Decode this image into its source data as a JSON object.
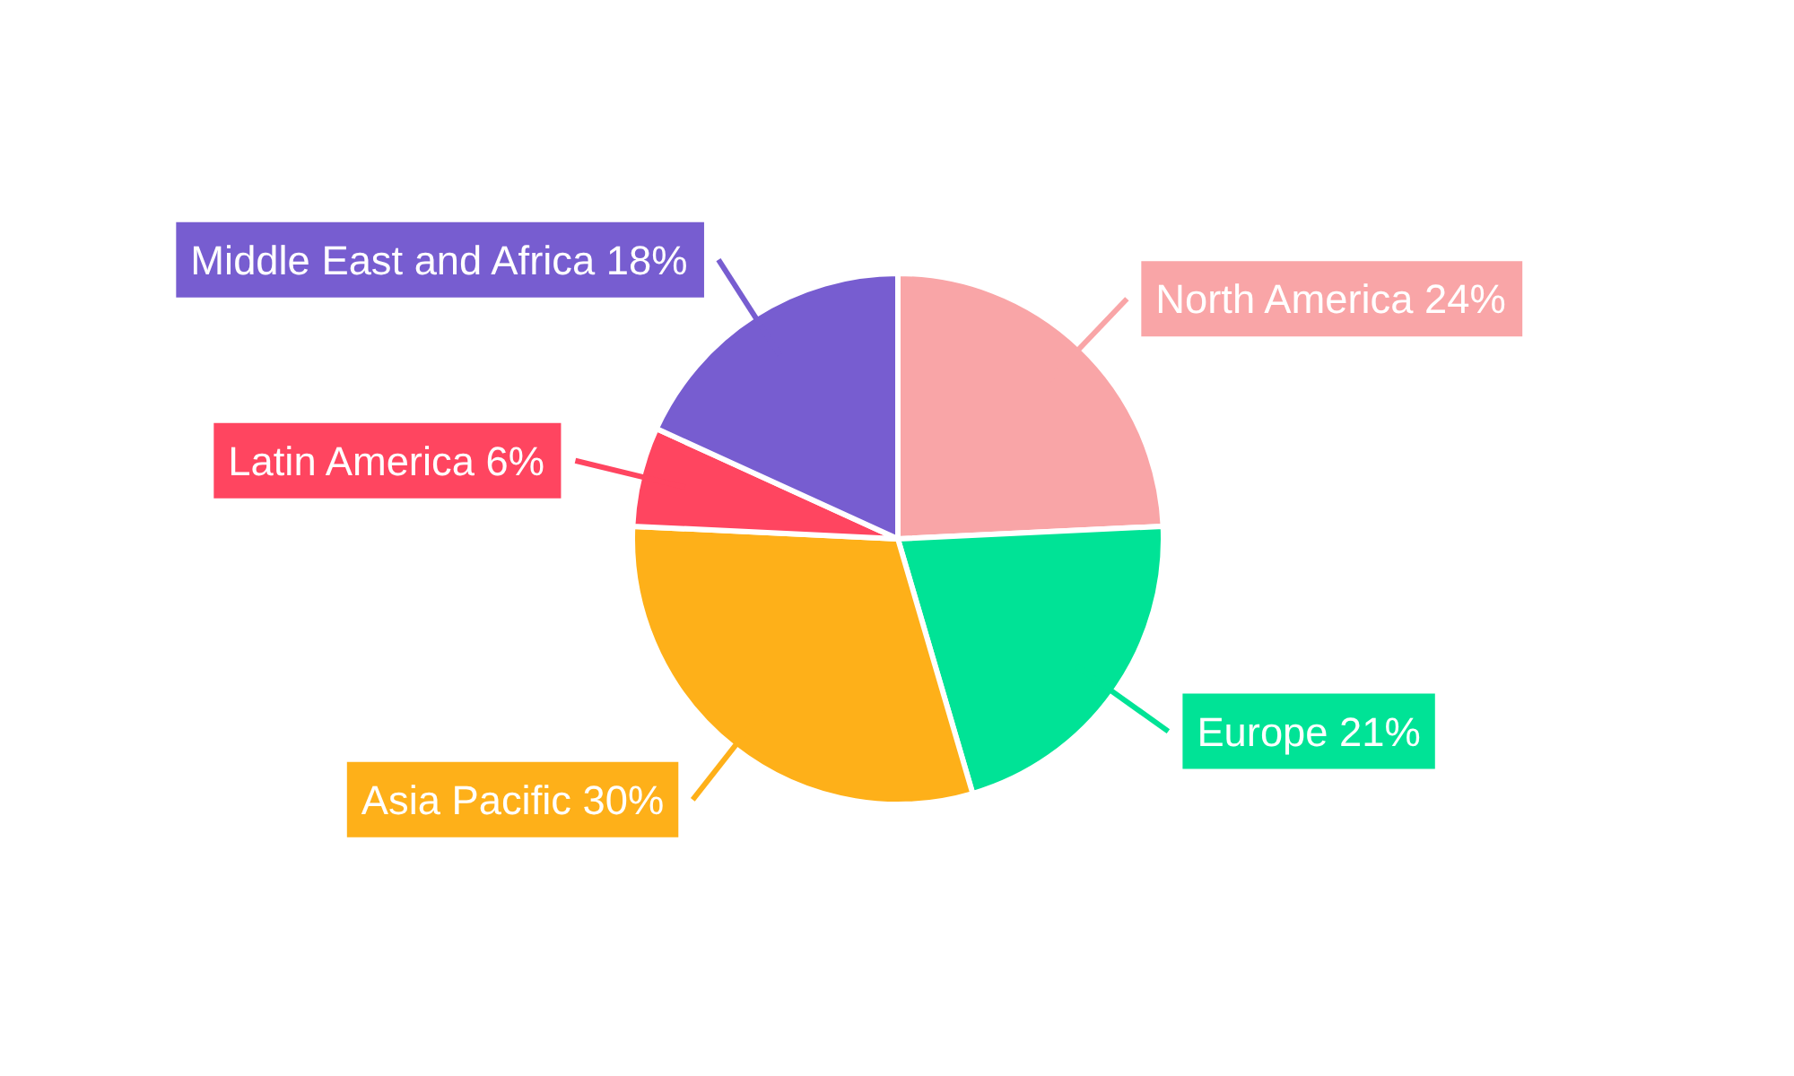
{
  "chart_data": {
    "type": "pie",
    "categories": [
      "North America",
      "Europe",
      "Asia Pacific",
      "Latin America",
      "Middle East and Africa"
    ],
    "values": [
      24,
      21,
      30,
      6,
      18
    ],
    "value_labels": [
      "24%",
      "21%",
      "30%",
      "6%",
      "18%"
    ],
    "colors": [
      "#f9a5a7",
      "#00e396",
      "#feb019",
      "#ff4560",
      "#775dd0"
    ]
  }
}
